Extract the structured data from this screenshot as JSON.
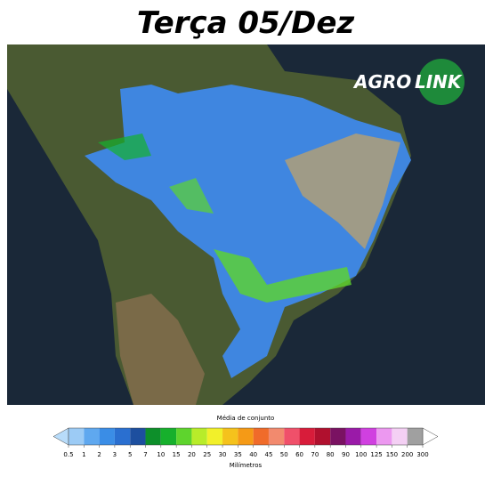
{
  "header": {
    "title": "Terça 05/Dez"
  },
  "logo": {
    "left": "AGRO",
    "right": "LINK"
  },
  "colorbar": {
    "title": "Média de conjunto",
    "unit": "Milímetros",
    "ticks": [
      0.5,
      1,
      2,
      3,
      5,
      7,
      10,
      15,
      20,
      25,
      30,
      35,
      40,
      45,
      50,
      60,
      70,
      80,
      90,
      100,
      125,
      150,
      200,
      300
    ],
    "under_color": "#b8dcfa",
    "over_color": "#ffffff",
    "colors": [
      "#9ccbf5",
      "#5fa8ef",
      "#3a8de6",
      "#2a6fd0",
      "#1d4f9f",
      "#0d8f2a",
      "#16b02c",
      "#5ed42d",
      "#b8ec2a",
      "#f2f02a",
      "#f5c21c",
      "#f59a16",
      "#f06b2a",
      "#f28a6e",
      "#f0506a",
      "#d81c3a",
      "#b0102e",
      "#7a1262",
      "#9a1aa8",
      "#d040e0",
      "#ec98f0",
      "#f4d0f4",
      "#a0a0a0"
    ]
  }
}
